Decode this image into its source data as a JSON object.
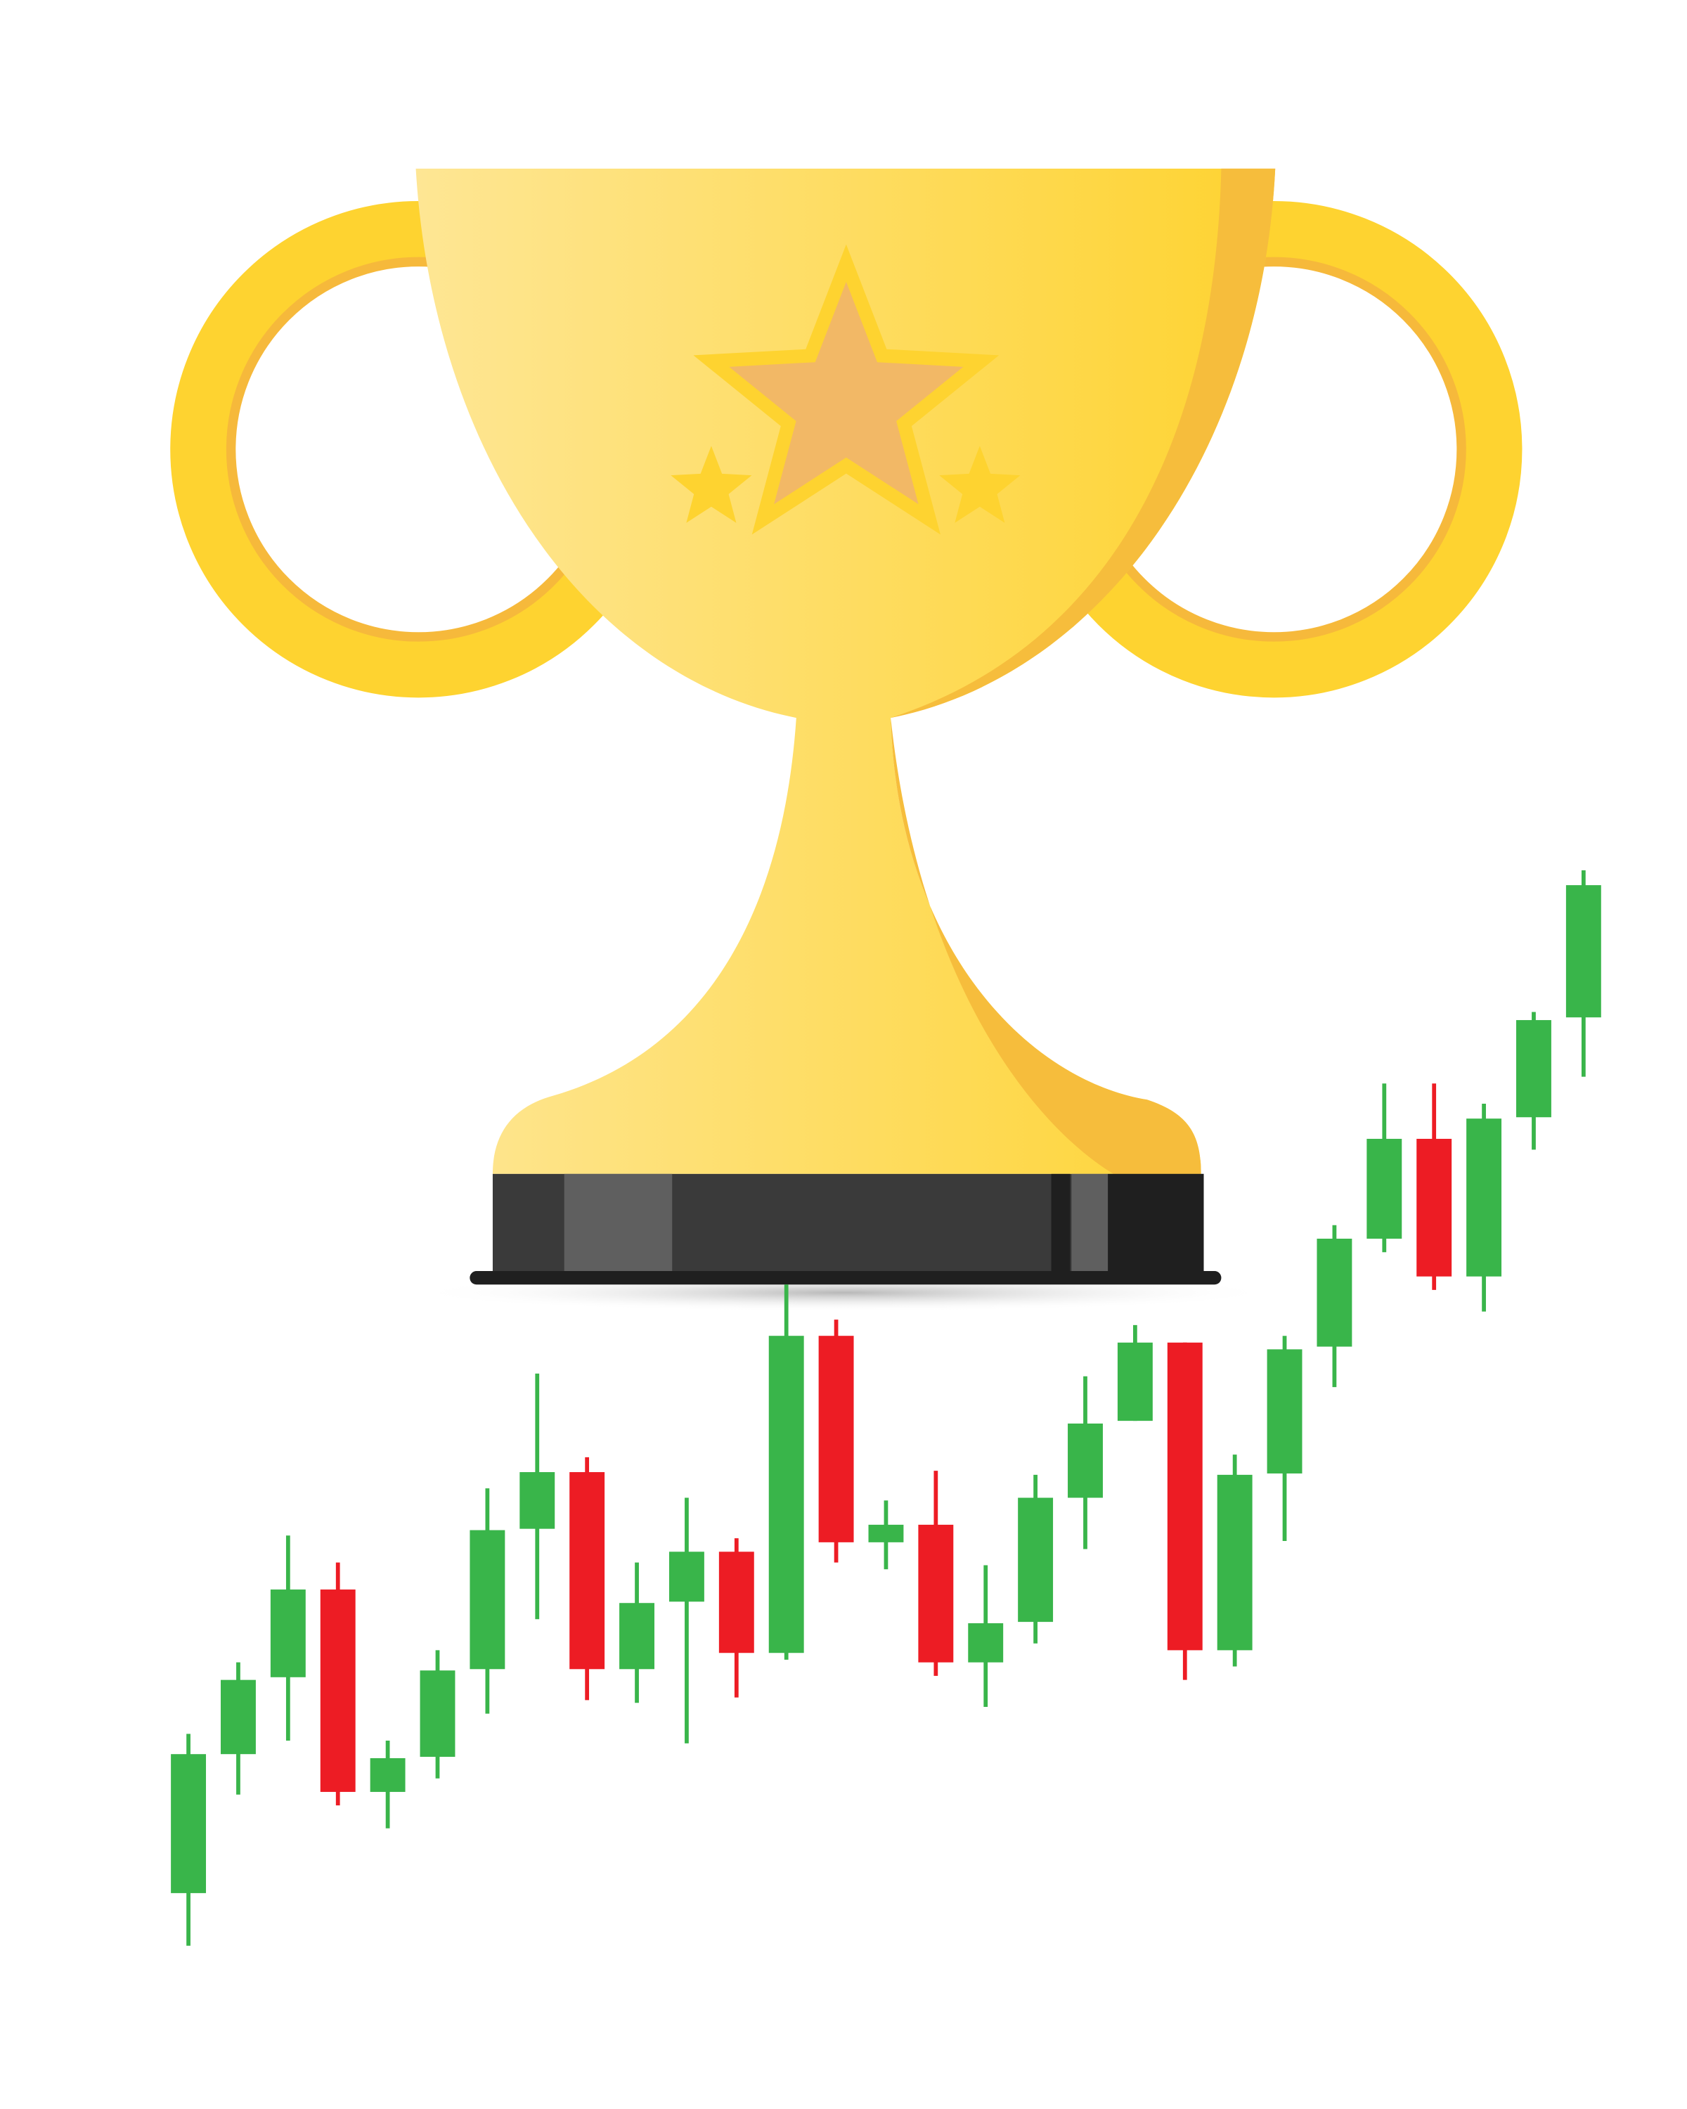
{
  "chart_data": {
    "type": "candlestick",
    "categories": [
      null,
      null,
      null,
      null,
      null,
      null,
      null,
      null,
      null,
      null,
      null,
      null,
      null,
      null,
      null,
      null,
      null,
      null,
      null,
      null,
      null,
      null,
      null,
      null,
      null,
      null,
      null,
      null,
      null
    ],
    "open": [
      97,
      200,
      257,
      322,
      172,
      198,
      263,
      367,
      409,
      263,
      313,
      350,
      275,
      510,
      357,
      370,
      268,
      298,
      390,
      447,
      505,
      277,
      408,
      502,
      582,
      656,
      554,
      672,
      746
    ],
    "high": [
      215,
      268,
      362,
      342,
      210,
      277,
      397,
      482,
      420,
      342,
      390,
      360,
      548,
      522,
      388,
      410,
      340,
      407,
      480,
      518,
      505,
      422,
      510,
      592,
      697,
      697,
      682,
      750,
      855
    ],
    "low": [
      58,
      170,
      210,
      162,
      145,
      182,
      230,
      300,
      240,
      238,
      208,
      242,
      270,
      342,
      337,
      258,
      235,
      282,
      352,
      447,
      255,
      265,
      358,
      472,
      572,
      544,
      528,
      648,
      702
    ],
    "close": [
      200,
      255,
      322,
      172,
      197,
      262,
      366,
      409,
      263,
      312,
      350,
      275,
      510,
      357,
      370,
      268,
      297,
      390,
      445,
      505,
      277,
      407,
      500,
      582,
      656,
      554,
      671,
      744,
      844
    ],
    "up_color": "#39b54a",
    "down_color": "#ed1c24",
    "ylim": [
      0,
      1500
    ]
  }
}
